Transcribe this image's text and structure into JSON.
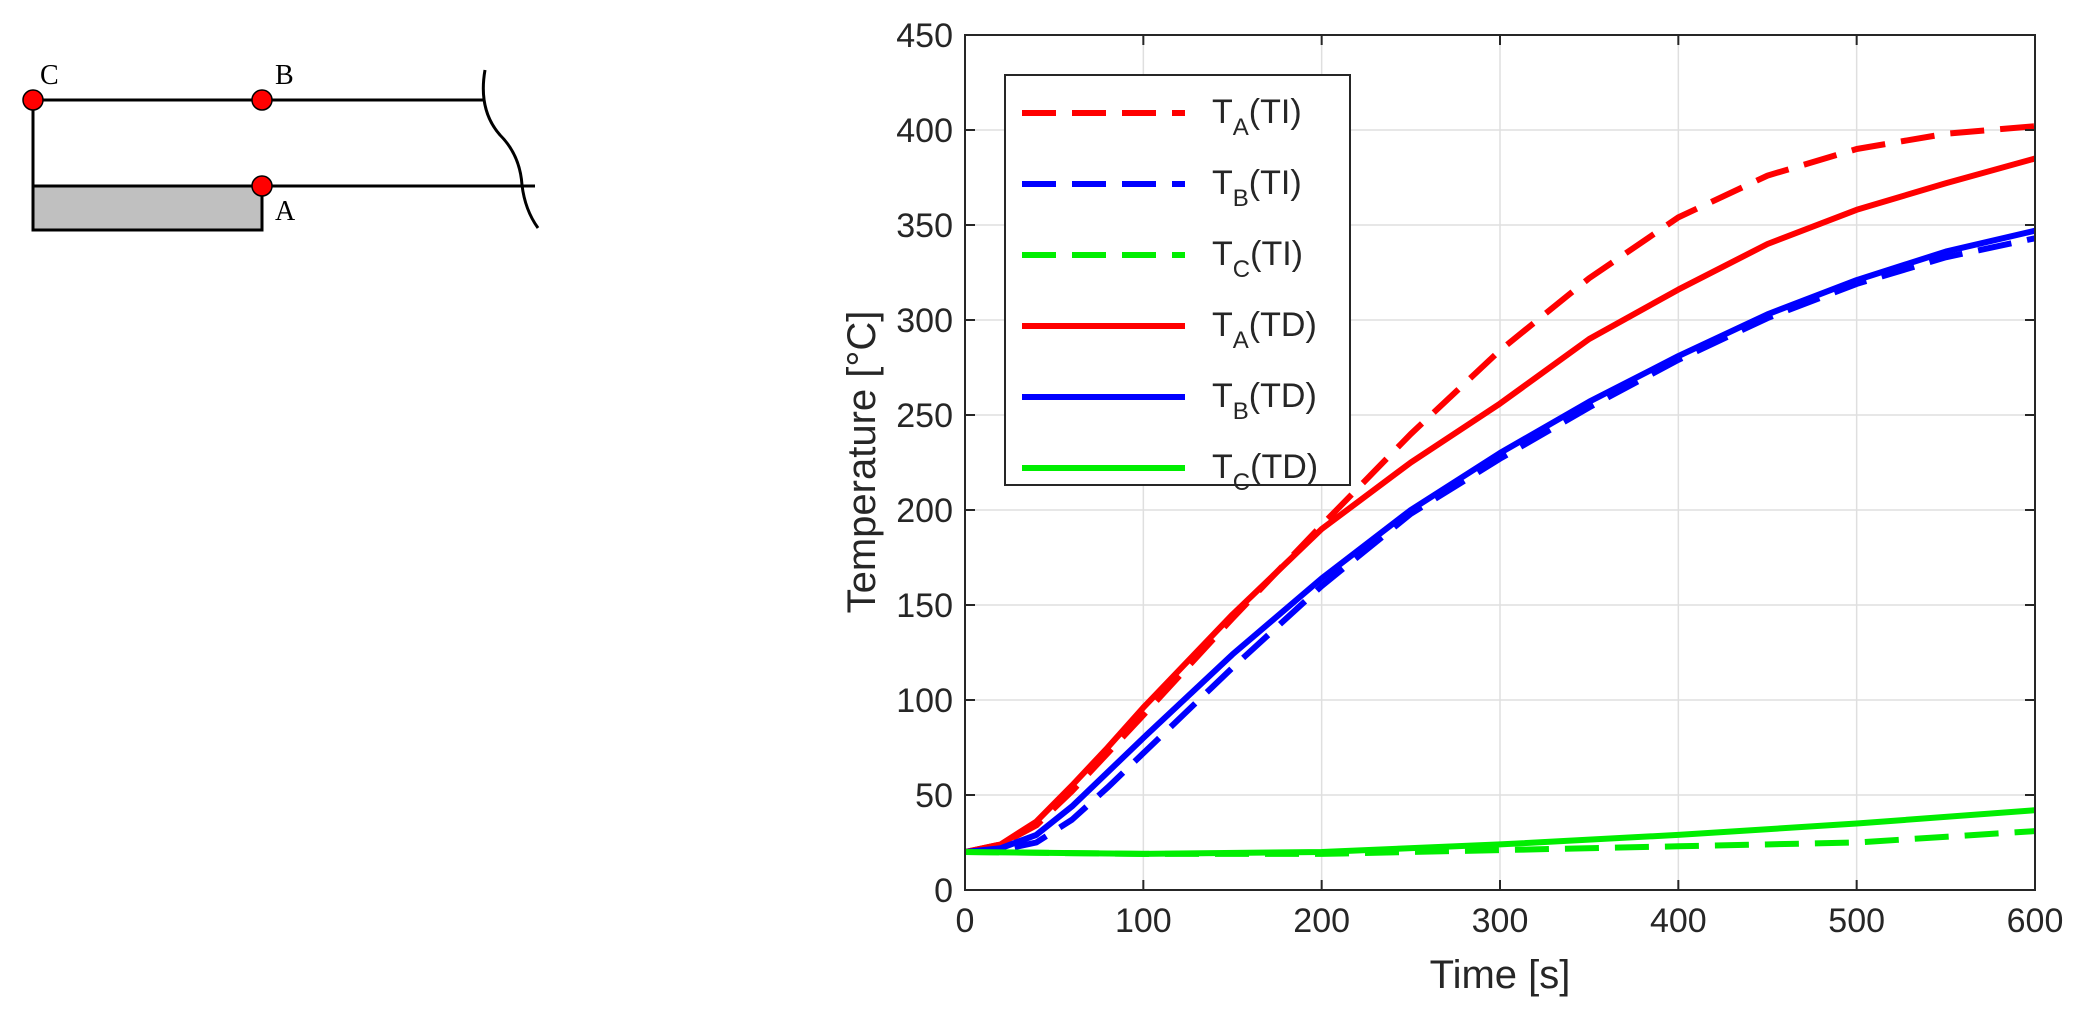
{
  "schematic": {
    "points": [
      {
        "id": "A",
        "label": "A"
      },
      {
        "id": "B",
        "label": "B"
      },
      {
        "id": "C",
        "label": "C"
      }
    ],
    "point_color": "#ff0000",
    "fill_color": "#c0c0c0"
  },
  "chart_data": {
    "type": "line",
    "title": "",
    "xlabel": "Time [s]",
    "ylabel": "Temperature [°C]",
    "xlim": [
      0,
      600
    ],
    "ylim": [
      0,
      450
    ],
    "xticks": [
      0,
      100,
      200,
      300,
      400,
      500,
      600
    ],
    "yticks": [
      0,
      50,
      100,
      150,
      200,
      250,
      300,
      350,
      400,
      450
    ],
    "grid": true,
    "legend_position": "top-left",
    "series": [
      {
        "name": "TA(TI)",
        "base": "T",
        "sub": "A",
        "suffix": "(TI)",
        "color": "#ff0000",
        "style": "dashed",
        "x": [
          0,
          20,
          40,
          60,
          80,
          100,
          150,
          200,
          250,
          300,
          350,
          400,
          450,
          500,
          550,
          600
        ],
        "y": [
          20,
          24,
          34,
          52,
          72,
          92,
          143,
          192,
          240,
          284,
          322,
          354,
          376,
          390,
          398,
          402
        ]
      },
      {
        "name": "TB(TI)",
        "base": "T",
        "sub": "B",
        "suffix": "(TI)",
        "color": "#0000ff",
        "style": "dashed",
        "x": [
          0,
          20,
          40,
          60,
          80,
          100,
          150,
          200,
          250,
          300,
          350,
          400,
          450,
          500,
          550,
          600
        ],
        "y": [
          20,
          21,
          25,
          37,
          54,
          72,
          117,
          160,
          198,
          227,
          254,
          279,
          301,
          319,
          333,
          343
        ]
      },
      {
        "name": "TC(TI)",
        "base": "T",
        "sub": "C",
        "suffix": "(TI)",
        "color": "#00ee00",
        "style": "dashed",
        "x": [
          0,
          100,
          200,
          300,
          400,
          500,
          600
        ],
        "y": [
          20,
          19,
          19,
          21,
          23,
          25,
          31
        ]
      },
      {
        "name": "TA(TD)",
        "base": "T",
        "sub": "A",
        "suffix": "(TD)",
        "color": "#ff0000",
        "style": "solid",
        "x": [
          0,
          20,
          40,
          60,
          80,
          100,
          150,
          200,
          250,
          300,
          350,
          400,
          450,
          500,
          550,
          600
        ],
        "y": [
          20,
          24,
          36,
          55,
          75,
          96,
          145,
          190,
          225,
          256,
          290,
          316,
          340,
          358,
          372,
          385
        ]
      },
      {
        "name": "TB(TD)",
        "base": "T",
        "sub": "B",
        "suffix": "(TD)",
        "color": "#0000ff",
        "style": "solid",
        "x": [
          0,
          20,
          40,
          60,
          80,
          100,
          150,
          200,
          250,
          300,
          350,
          400,
          450,
          500,
          550,
          600
        ],
        "y": [
          20,
          22,
          29,
          44,
          62,
          80,
          124,
          164,
          200,
          230,
          257,
          281,
          303,
          321,
          336,
          347
        ]
      },
      {
        "name": "TC(TD)",
        "base": "T",
        "sub": "C",
        "suffix": "(TD)",
        "color": "#00ee00",
        "style": "solid",
        "x": [
          0,
          100,
          200,
          300,
          400,
          500,
          600
        ],
        "y": [
          20,
          19,
          20,
          24,
          29,
          35,
          42
        ]
      }
    ]
  }
}
